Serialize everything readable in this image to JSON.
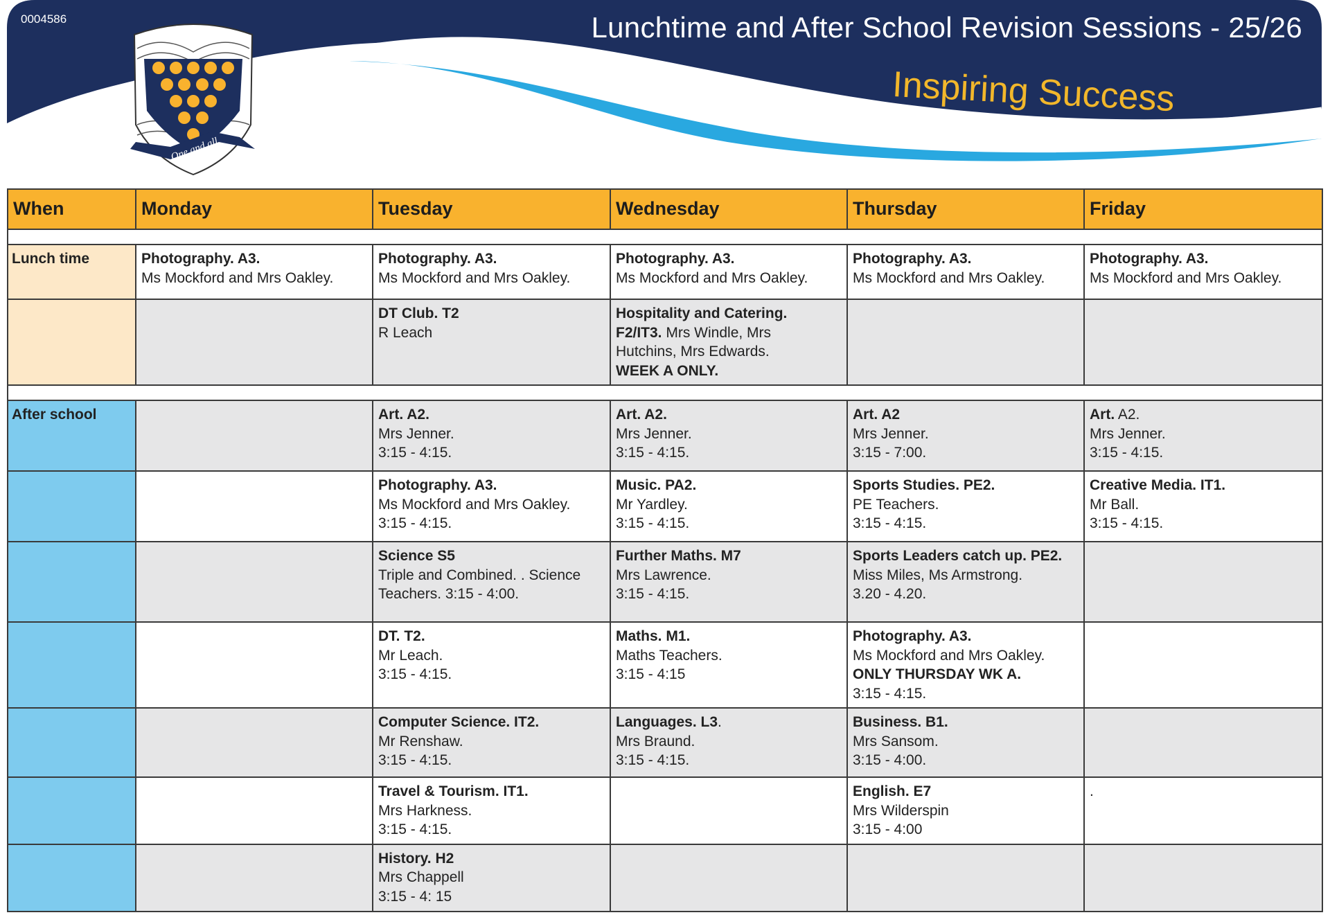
{
  "header": {
    "doc_id": "0004586",
    "title": "Lunchtime and After School Revision Sessions - 25/26",
    "tagline": "Inspiring Success",
    "crest_motto": "One and all",
    "colors": {
      "navy": "#1D2F5E",
      "sky": "#29A8E0",
      "gold": "#F2B72B"
    }
  },
  "table": {
    "columns": [
      "When",
      "Monday",
      "Tuesday",
      "Wednesday",
      "Thursday",
      "Friday"
    ],
    "colors": {
      "header": "#F9B22E",
      "lunch": "#FDE8C8",
      "after_school": "#7ECBEE",
      "grey_row": "#E6E6E7"
    },
    "rows": [
      {
        "section": "lunch",
        "shade": "white",
        "label": "Lunch time",
        "cells": [
          [
            [
              {
                "t": "Photography. A3.",
                "b": true
              }
            ],
            [
              {
                "t": "Ms Mockford and Mrs Oakley."
              }
            ]
          ],
          [
            [
              {
                "t": "Photography. A3.",
                "b": true
              }
            ],
            [
              {
                "t": "Ms Mockford and Mrs Oakley."
              }
            ]
          ],
          [
            [
              {
                "t": "Photography. A3.",
                "b": true
              }
            ],
            [
              {
                "t": "Ms Mockford and Mrs Oakley."
              }
            ]
          ],
          [
            [
              {
                "t": "Photography. A3.",
                "b": true
              }
            ],
            [
              {
                "t": "Ms Mockford and Mrs Oakley."
              }
            ]
          ],
          [
            [
              {
                "t": "Photography. A3.",
                "b": true
              }
            ],
            [
              {
                "t": "Ms Mockford and Mrs Oakley."
              }
            ]
          ]
        ]
      },
      {
        "section": "lunch",
        "shade": "grey",
        "label": "",
        "cells": [
          [],
          [
            [
              {
                "t": "DT Club. T2",
                "b": true
              }
            ],
            [
              {
                "t": "R Leach"
              }
            ]
          ],
          [
            [
              {
                "t": "Hospitality and Catering.",
                "b": true
              }
            ],
            [
              {
                "t": "F2/IT3.",
                "b": true
              },
              {
                "t": " Mrs Windle, Mrs"
              }
            ],
            [
              {
                "t": "Hutchins, Mrs Edwards."
              }
            ],
            [
              {
                "t": "WEEK A ONLY.",
                "b": true
              }
            ]
          ],
          [],
          []
        ]
      },
      {
        "section": "gap"
      },
      {
        "section": "after",
        "shade": "grey",
        "label": "After school",
        "cells": [
          [],
          [
            [
              {
                "t": "Art. A2.",
                "b": true
              }
            ],
            [
              {
                "t": "Mrs Jenner."
              }
            ],
            [
              {
                "t": "3:15 - 4:15."
              }
            ]
          ],
          [
            [
              {
                "t": "Art. A2.",
                "b": true
              }
            ],
            [
              {
                "t": "Mrs Jenner."
              }
            ],
            [
              {
                "t": "3:15 - 4:15."
              }
            ]
          ],
          [
            [
              {
                "t": "Art. A2",
                "b": true
              }
            ],
            [
              {
                "t": "Mrs Jenner."
              }
            ],
            [
              {
                "t": "3:15 - 7:00."
              }
            ]
          ],
          [
            [
              {
                "t": "Art.",
                "b": true
              },
              {
                "t": " A2."
              }
            ],
            [
              {
                "t": "Mrs Jenner."
              }
            ],
            [
              {
                "t": "3:15 - 4:15."
              }
            ]
          ]
        ]
      },
      {
        "section": "after",
        "shade": "white",
        "label": "",
        "cells": [
          [],
          [
            [
              {
                "t": "Photography. A3.",
                "b": true
              }
            ],
            [
              {
                "t": "Ms Mockford and Mrs Oakley."
              }
            ],
            [
              {
                "t": "3:15 - 4:15."
              }
            ]
          ],
          [
            [
              {
                "t": "Music. PA2.",
                "b": true
              }
            ],
            [
              {
                "t": "Mr Yardley."
              }
            ],
            [
              {
                "t": "3:15 - 4:15."
              }
            ]
          ],
          [
            [
              {
                "t": "Sports Studies. PE2.",
                "b": true
              }
            ],
            [
              {
                "t": "PE Teachers."
              }
            ],
            [
              {
                "t": "3:15 - 4:15."
              }
            ]
          ],
          [
            [
              {
                "t": "Creative Media. IT1.",
                "b": true
              }
            ],
            [
              {
                "t": "Mr Ball."
              }
            ],
            [
              {
                "t": "3:15 - 4:15."
              }
            ]
          ]
        ]
      },
      {
        "section": "after",
        "shade": "grey",
        "label": "",
        "cells": [
          [],
          [
            [
              {
                "t": "Science S5",
                "b": true
              }
            ],
            [
              {
                "t": "Triple and Combined. . Science"
              }
            ],
            [
              {
                "t": "Teachers. 3:15 - 4:00."
              }
            ]
          ],
          [
            [
              {
                "t": "Further Maths. M7",
                "b": true
              }
            ],
            [
              {
                "t": "Mrs Lawrence."
              }
            ],
            [
              {
                "t": "3:15 - 4:15."
              }
            ]
          ],
          [
            [
              {
                "t": "Sports Leaders catch up. PE2.",
                "b": true
              }
            ],
            [
              {
                "t": "Miss Miles, Ms Armstrong."
              }
            ],
            [
              {
                "t": "3.20 - 4.20."
              }
            ]
          ],
          []
        ]
      },
      {
        "section": "after",
        "shade": "white",
        "label": "",
        "cells": [
          [],
          [
            [
              {
                "t": "DT. T2.",
                "b": true
              }
            ],
            [
              {
                "t": "Mr Leach."
              }
            ],
            [
              {
                "t": "3:15 - 4:15."
              }
            ]
          ],
          [
            [
              {
                "t": "Maths. M1.",
                "b": true
              }
            ],
            [
              {
                "t": "Maths Teachers."
              }
            ],
            [
              {
                "t": "3:15 - 4:15"
              }
            ]
          ],
          [
            [
              {
                "t": "Photography. A3.",
                "b": true
              }
            ],
            [
              {
                "t": "Ms Mockford and Mrs Oakley."
              }
            ],
            [
              {
                "t": "ONLY THURSDAY WK A.",
                "b": true
              }
            ],
            [
              {
                "t": "3:15 - 4:15."
              }
            ]
          ],
          []
        ]
      },
      {
        "section": "after",
        "shade": "grey",
        "label": "",
        "cells": [
          [],
          [
            [
              {
                "t": "Computer Science. IT2.",
                "b": true
              }
            ],
            [
              {
                "t": "Mr Renshaw."
              }
            ],
            [
              {
                "t": "3:15 - 4:15."
              }
            ]
          ],
          [
            [
              {
                "t": "Languages. L3",
                "b": true
              },
              {
                "t": "."
              }
            ],
            [
              {
                "t": "Mrs Braund."
              }
            ],
            [
              {
                "t": "3:15 - 4:15."
              }
            ]
          ],
          [
            [
              {
                "t": "Business. B1.",
                "b": true
              }
            ],
            [
              {
                "t": "Mrs Sansom."
              }
            ],
            [
              {
                "t": "3:15 - 4:00."
              }
            ]
          ],
          []
        ]
      },
      {
        "section": "after",
        "shade": "white",
        "label": "",
        "cells": [
          [],
          [
            [
              {
                "t": "Travel & Tourism. IT1.",
                "b": true
              }
            ],
            [
              {
                "t": "Mrs Harkness."
              }
            ],
            [
              {
                "t": "3:15 - 4:15."
              }
            ]
          ],
          [],
          [
            [
              {
                "t": "English. E7",
                "b": true
              }
            ],
            [
              {
                "t": "Mrs Wilderspin"
              }
            ],
            [
              {
                "t": "3:15 - 4:00"
              }
            ]
          ],
          [
            [
              {
                "t": "."
              }
            ]
          ]
        ]
      },
      {
        "section": "after",
        "shade": "grey",
        "label": "",
        "cells": [
          [],
          [
            [
              {
                "t": "History. H2",
                "b": true
              }
            ],
            [
              {
                "t": "Mrs Chappell"
              }
            ],
            [
              {
                "t": "3:15 - 4: 15"
              }
            ]
          ],
          [],
          [],
          []
        ]
      }
    ]
  }
}
